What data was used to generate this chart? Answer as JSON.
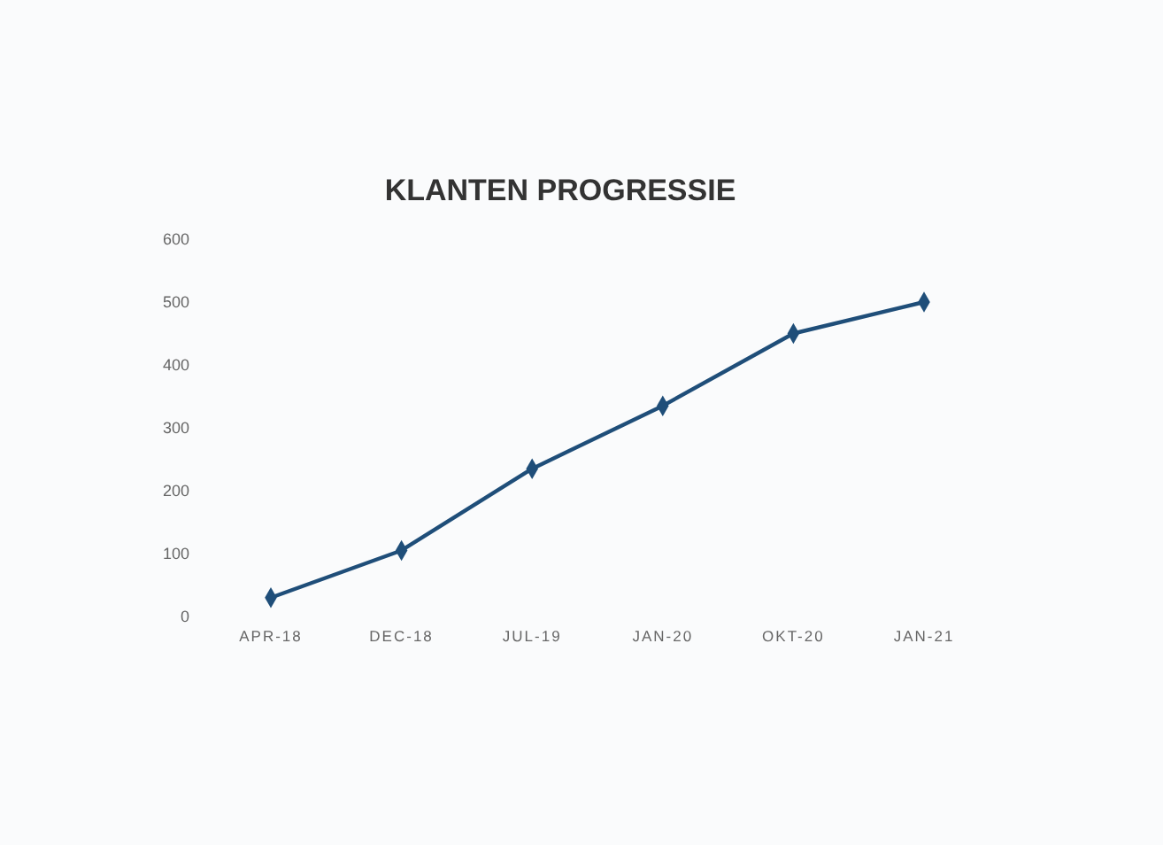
{
  "chart_data": {
    "type": "line",
    "title": "KLANTEN PROGRESSIE",
    "categories": [
      "APR-18",
      "DEC-18",
      "JUL-19",
      "JAN-20",
      "OKT-20",
      "JAN-21"
    ],
    "series": [
      {
        "color": "#1f4e79",
        "values": [
          30,
          105,
          235,
          335,
          450,
          500
        ]
      }
    ],
    "ylim": [
      0,
      600
    ],
    "yticks": [
      0,
      100,
      200,
      300,
      400,
      500,
      600
    ],
    "grid": false,
    "marker": "diamond",
    "line_style": "solid"
  }
}
